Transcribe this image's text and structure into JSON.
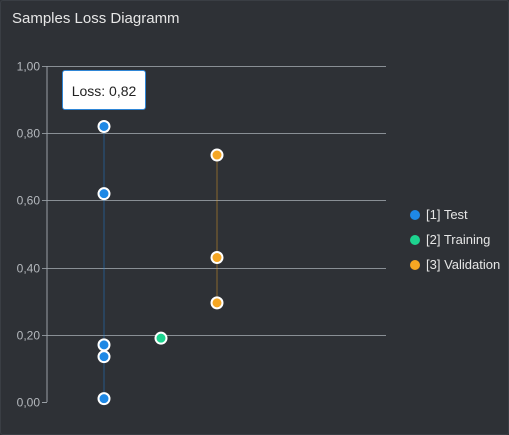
{
  "title": "Samples Loss Diagramm",
  "tooltip": {
    "text": "Loss: 0,82"
  },
  "colors": {
    "background": "#2e3136",
    "grid": "#9aa0a6",
    "tick_text": "#b4b8bd",
    "point_stroke": "#ffffff"
  },
  "chart_data": {
    "type": "scatter",
    "title": "Samples Loss Diagramm",
    "xlabel": "",
    "ylabel": "",
    "ylim": [
      0,
      1
    ],
    "yticks": [
      "0,00",
      "0,20",
      "0,40",
      "0,60",
      "0,80",
      "1,00"
    ],
    "grid": true,
    "legend": "right",
    "series": [
      {
        "name": "[1] Test",
        "color": "#1e88e5",
        "x": 1,
        "values": [
          0.82,
          0.62,
          0.17,
          0.135,
          0.01
        ]
      },
      {
        "name": "[2] Training",
        "color": "#1dd38f",
        "x": 2,
        "values": [
          0.19
        ]
      },
      {
        "name": "[3] Validation",
        "color": "#f5a623",
        "x": 3,
        "values": [
          0.735,
          0.43,
          0.295
        ]
      }
    ]
  }
}
